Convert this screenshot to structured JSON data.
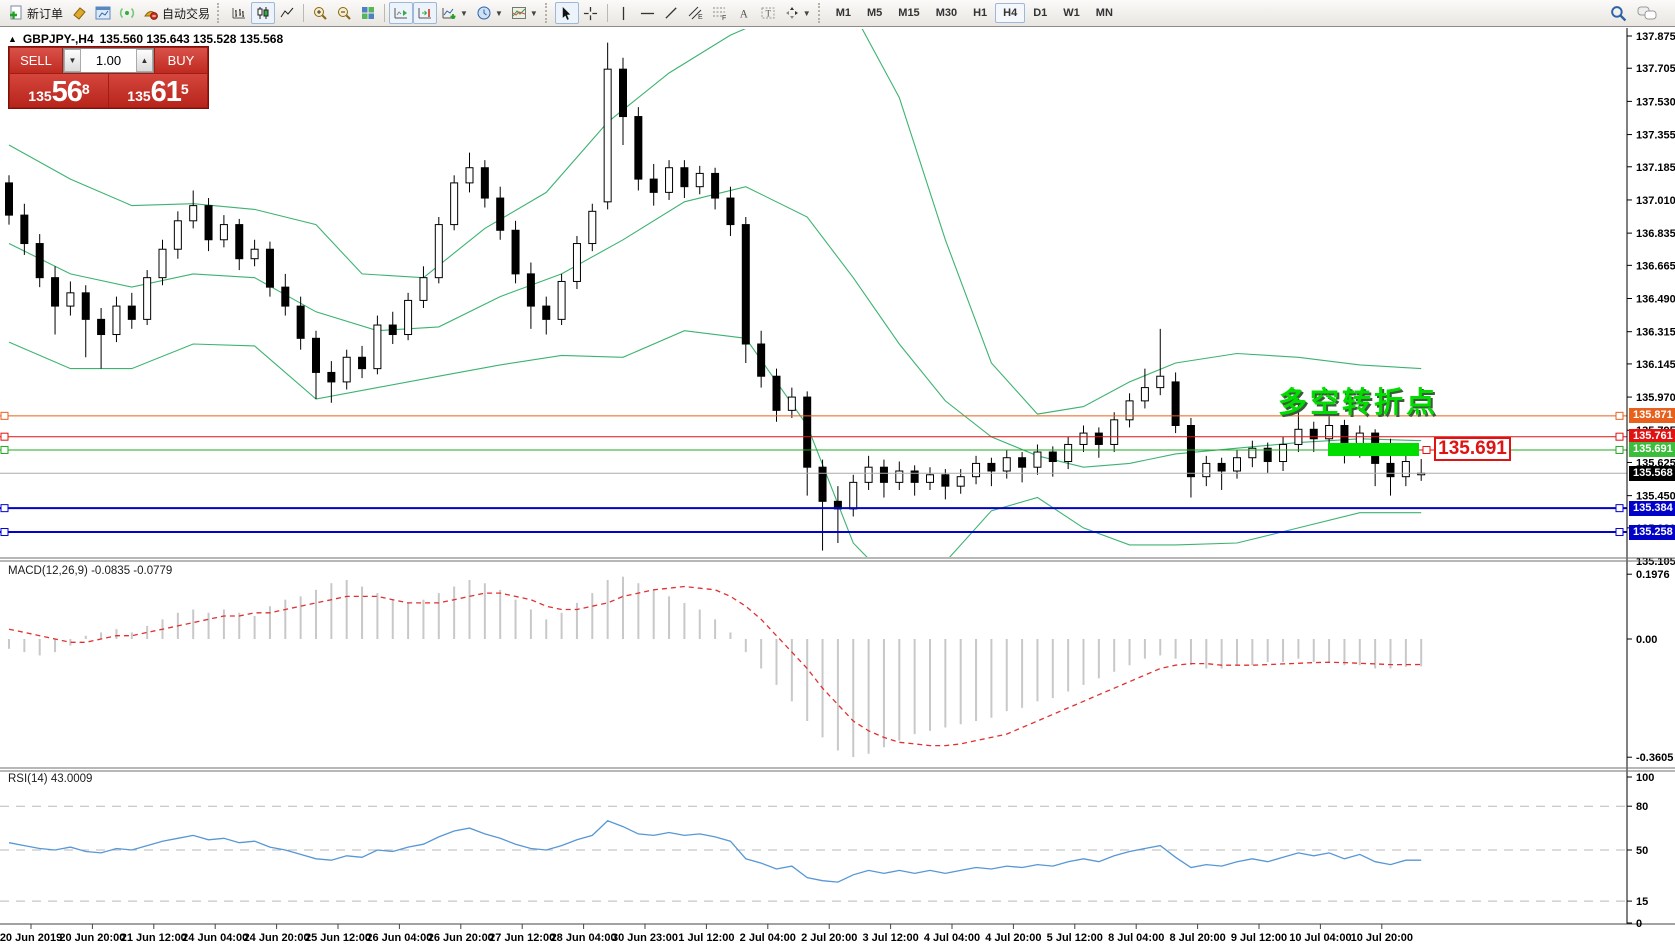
{
  "toolbar": {
    "new_order_label": "新订单",
    "auto_trading_label": "自动交易",
    "timeframes": [
      "M1",
      "M5",
      "M15",
      "M30",
      "H1",
      "H4",
      "D1",
      "W1",
      "MN"
    ],
    "active_timeframe": "H4",
    "annotation_tool_labels": {
      "channel": "E",
      "fibo": "F",
      "text": "A"
    }
  },
  "symbol_bar": {
    "symbol": "GBPJPY-,H4",
    "ohlc": "135.560 135.643 135.528 135.568"
  },
  "trade_panel": {
    "sell_label": "SELL",
    "buy_label": "BUY",
    "volume": "1.00",
    "sell_prefix": "135",
    "sell_big": "56",
    "sell_sup": "8",
    "buy_prefix": "135",
    "buy_big": "61",
    "buy_sup": "5"
  },
  "chart": {
    "annotation": "多空转折点",
    "price_tag": "135.691",
    "bands_color": "#3CB371",
    "price_ticks": [
      137.875,
      137.705,
      137.53,
      137.355,
      137.185,
      137.01,
      136.835,
      136.665,
      136.49,
      136.315,
      136.145,
      135.97,
      135.795,
      135.625,
      135.45,
      135.28,
      135.105
    ],
    "hlines": [
      {
        "price": 135.871,
        "color": "#E8611C",
        "badge": "#E8611C",
        "width": 1
      },
      {
        "price": 135.761,
        "color": "#E01212",
        "badge": "#E01212",
        "width": 1
      },
      {
        "price": 135.691,
        "color": "#1FA81F",
        "badge": "#3CBE3C",
        "width": 1
      },
      {
        "price": 135.384,
        "color": "#0202C8",
        "badge": "#0202C8",
        "width": 2
      },
      {
        "price": 135.258,
        "color": "#0202C8",
        "badge": "#0202C8",
        "width": 2
      }
    ],
    "current_price": {
      "value": 135.568,
      "badge": "#000000",
      "line": "#ABABAB"
    },
    "time_labels": [
      "20 Jun 2019",
      "20 Jun 20:00",
      "21 Jun 12:00",
      "24 Jun 04:00",
      "24 Jun 20:00",
      "25 Jun 12:00",
      "26 Jun 04:00",
      "26 Jun 20:00",
      "27 Jun 12:00",
      "28 Jun 04:00",
      "30 Jun 23:00",
      "1 Jul 12:00",
      "2 Jul 04:00",
      "2 Jul 20:00",
      "3 Jul 12:00",
      "4 Jul 04:00",
      "4 Jul 20:00",
      "5 Jul 12:00",
      "8 Jul 04:00",
      "8 Jul 20:00",
      "9 Jul 12:00",
      "10 Jul 04:00",
      "10 Jul 20:00"
    ],
    "candles": [
      [
        137.1,
        137.14,
        136.88,
        136.93
      ],
      [
        136.93,
        136.99,
        136.72,
        136.78
      ],
      [
        136.78,
        136.83,
        136.55,
        136.6
      ],
      [
        136.6,
        136.66,
        136.3,
        136.45
      ],
      [
        136.45,
        136.58,
        136.4,
        136.52
      ],
      [
        136.52,
        136.56,
        136.18,
        136.38
      ],
      [
        136.38,
        136.44,
        136.12,
        136.3
      ],
      [
        136.3,
        136.5,
        136.26,
        136.45
      ],
      [
        136.45,
        136.52,
        136.33,
        136.38
      ],
      [
        136.38,
        136.64,
        136.35,
        136.6
      ],
      [
        136.6,
        136.8,
        136.56,
        136.75
      ],
      [
        136.75,
        136.95,
        136.7,
        136.9
      ],
      [
        136.9,
        137.06,
        136.86,
        136.98
      ],
      [
        136.98,
        137.02,
        136.74,
        136.8
      ],
      [
        136.8,
        136.93,
        136.76,
        136.88
      ],
      [
        136.88,
        136.91,
        136.64,
        136.7
      ],
      [
        136.7,
        136.8,
        136.66,
        136.75
      ],
      [
        136.75,
        136.79,
        136.5,
        136.55
      ],
      [
        136.55,
        136.62,
        136.4,
        136.45
      ],
      [
        136.45,
        136.5,
        136.22,
        136.28
      ],
      [
        136.28,
        136.32,
        135.96,
        136.1
      ],
      [
        136.1,
        136.16,
        135.94,
        136.05
      ],
      [
        136.05,
        136.22,
        136.01,
        136.18
      ],
      [
        136.18,
        136.24,
        136.07,
        136.12
      ],
      [
        136.12,
        136.4,
        136.09,
        136.35
      ],
      [
        136.35,
        136.42,
        136.25,
        136.3
      ],
      [
        136.3,
        136.52,
        136.27,
        136.48
      ],
      [
        136.48,
        136.66,
        136.44,
        136.6
      ],
      [
        136.6,
        136.92,
        136.57,
        136.88
      ],
      [
        136.88,
        137.14,
        136.85,
        137.1
      ],
      [
        137.1,
        137.26,
        137.05,
        137.18
      ],
      [
        137.18,
        137.22,
        136.97,
        137.02
      ],
      [
        137.02,
        137.08,
        136.8,
        136.85
      ],
      [
        136.85,
        136.9,
        136.57,
        136.62
      ],
      [
        136.62,
        136.68,
        136.33,
        136.45
      ],
      [
        136.45,
        136.5,
        136.3,
        136.38
      ],
      [
        136.38,
        136.62,
        136.35,
        136.58
      ],
      [
        136.58,
        136.82,
        136.54,
        136.78
      ],
      [
        136.78,
        136.99,
        136.74,
        136.95
      ],
      [
        137.0,
        137.84,
        136.96,
        137.7
      ],
      [
        137.7,
        137.76,
        137.3,
        137.45
      ],
      [
        137.45,
        137.5,
        137.06,
        137.12
      ],
      [
        137.12,
        137.2,
        136.98,
        137.05
      ],
      [
        137.05,
        137.22,
        137.01,
        137.18
      ],
      [
        137.18,
        137.22,
        137.02,
        137.08
      ],
      [
        137.08,
        137.19,
        137.04,
        137.15
      ],
      [
        137.15,
        137.18,
        136.96,
        137.02
      ],
      [
        137.02,
        137.08,
        136.82,
        136.88
      ],
      [
        136.88,
        136.92,
        136.15,
        136.25
      ],
      [
        136.25,
        136.32,
        136.02,
        136.08
      ],
      [
        136.08,
        136.12,
        135.84,
        135.9
      ],
      [
        135.9,
        136.02,
        135.86,
        135.97
      ],
      [
        135.97,
        136.0,
        135.45,
        135.6
      ],
      [
        135.6,
        135.64,
        135.16,
        135.42
      ],
      [
        135.42,
        135.5,
        135.2,
        135.38
      ],
      [
        135.38,
        135.56,
        135.34,
        135.52
      ],
      [
        135.52,
        135.66,
        135.48,
        135.6
      ],
      [
        135.6,
        135.64,
        135.44,
        135.52
      ],
      [
        135.52,
        135.63,
        135.48,
        135.58
      ],
      [
        135.58,
        135.61,
        135.45,
        135.52
      ],
      [
        135.52,
        135.6,
        135.48,
        135.56
      ],
      [
        135.56,
        135.59,
        135.43,
        135.5
      ],
      [
        135.5,
        135.59,
        135.46,
        135.55
      ],
      [
        135.55,
        135.66,
        135.51,
        135.62
      ],
      [
        135.62,
        135.65,
        135.5,
        135.58
      ],
      [
        135.58,
        135.69,
        135.54,
        135.65
      ],
      [
        135.65,
        135.68,
        135.52,
        135.6
      ],
      [
        135.6,
        135.72,
        135.56,
        135.68
      ],
      [
        135.68,
        135.71,
        135.55,
        135.63
      ],
      [
        135.63,
        135.76,
        135.59,
        135.72
      ],
      [
        135.72,
        135.82,
        135.68,
        135.78
      ],
      [
        135.78,
        135.81,
        135.65,
        135.72
      ],
      [
        135.72,
        135.89,
        135.68,
        135.85
      ],
      [
        135.85,
        135.99,
        135.81,
        135.95
      ],
      [
        135.95,
        136.12,
        135.91,
        136.02
      ],
      [
        136.02,
        136.33,
        135.98,
        136.08
      ],
      [
        136.05,
        136.1,
        135.78,
        135.82
      ],
      [
        135.82,
        135.86,
        135.44,
        135.55
      ],
      [
        135.55,
        135.66,
        135.5,
        135.62
      ],
      [
        135.62,
        135.65,
        135.48,
        135.58
      ],
      [
        135.58,
        135.69,
        135.54,
        135.65
      ],
      [
        135.65,
        135.74,
        135.6,
        135.7
      ],
      [
        135.7,
        135.73,
        135.57,
        135.63
      ],
      [
        135.63,
        135.76,
        135.58,
        135.72
      ],
      [
        135.72,
        136.0,
        135.68,
        135.8
      ],
      [
        135.8,
        135.84,
        135.68,
        135.75
      ],
      [
        135.75,
        135.88,
        135.7,
        135.82
      ],
      [
        135.82,
        135.85,
        135.62,
        135.7
      ],
      [
        135.7,
        135.82,
        135.65,
        135.78
      ],
      [
        135.78,
        135.8,
        135.5,
        135.62
      ],
      [
        135.62,
        135.75,
        135.45,
        135.55
      ],
      [
        135.55,
        135.7,
        135.5,
        135.63
      ],
      [
        135.56,
        135.643,
        135.528,
        135.568
      ]
    ],
    "bands": {
      "upper": [
        [
          0,
          137.3
        ],
        [
          4,
          137.12
        ],
        [
          8,
          136.98
        ],
        [
          12,
          136.99
        ],
        [
          16,
          136.96
        ],
        [
          20,
          136.88
        ],
        [
          23,
          136.62
        ],
        [
          27,
          136.6
        ],
        [
          31,
          136.86
        ],
        [
          35,
          137.05
        ],
        [
          39,
          137.42
        ],
        [
          43,
          137.68
        ],
        [
          47,
          137.88
        ],
        [
          51,
          138.02
        ],
        [
          55,
          138.0
        ],
        [
          58,
          137.55
        ],
        [
          61,
          136.8
        ],
        [
          64,
          136.15
        ],
        [
          67,
          135.88
        ],
        [
          70,
          135.92
        ],
        [
          73,
          136.05
        ],
        [
          76,
          136.15
        ],
        [
          80,
          136.2
        ],
        [
          84,
          136.18
        ],
        [
          88,
          136.14
        ],
        [
          92,
          136.12
        ]
      ],
      "middle": [
        [
          0,
          136.78
        ],
        [
          4,
          136.62
        ],
        [
          8,
          136.55
        ],
        [
          12,
          136.62
        ],
        [
          16,
          136.6
        ],
        [
          20,
          136.42
        ],
        [
          24,
          136.32
        ],
        [
          28,
          136.34
        ],
        [
          32,
          136.5
        ],
        [
          36,
          136.62
        ],
        [
          40,
          136.8
        ],
        [
          44,
          137.0
        ],
        [
          48,
          137.08
        ],
        [
          52,
          136.92
        ],
        [
          55,
          136.6
        ],
        [
          58,
          136.25
        ],
        [
          61,
          135.95
        ],
        [
          64,
          135.76
        ],
        [
          67,
          135.66
        ],
        [
          70,
          135.6
        ],
        [
          73,
          135.62
        ],
        [
          76,
          135.67
        ],
        [
          80,
          135.7
        ],
        [
          84,
          135.73
        ],
        [
          88,
          135.75
        ],
        [
          92,
          135.74
        ]
      ],
      "lower": [
        [
          0,
          136.26
        ],
        [
          4,
          136.12
        ],
        [
          8,
          136.12
        ],
        [
          12,
          136.25
        ],
        [
          16,
          136.24
        ],
        [
          20,
          135.96
        ],
        [
          24,
          136.02
        ],
        [
          28,
          136.08
        ],
        [
          32,
          136.14
        ],
        [
          36,
          136.19
        ],
        [
          40,
          136.18
        ],
        [
          44,
          136.32
        ],
        [
          48,
          136.28
        ],
        [
          52,
          135.82
        ],
        [
          55,
          135.2
        ],
        [
          58,
          134.95
        ],
        [
          61,
          135.1
        ],
        [
          64,
          135.37
        ],
        [
          67,
          135.44
        ],
        [
          70,
          135.28
        ],
        [
          73,
          135.19
        ],
        [
          76,
          135.19
        ],
        [
          80,
          135.2
        ],
        [
          84,
          135.28
        ],
        [
          88,
          135.36
        ],
        [
          92,
          135.36
        ]
      ]
    }
  },
  "macd": {
    "label": "MACD(12,26,9)",
    "values": "-0.0835 -0.0779",
    "axis_max": "0.1976",
    "axis_zero": "0.00",
    "axis_min": "-0.3605",
    "hist_color": "#C8C8C8",
    "signal_color": "#E03030",
    "hist": [
      -0.03,
      -0.04,
      -0.05,
      -0.04,
      -0.02,
      0.01,
      0.02,
      0.03,
      0.02,
      0.04,
      0.06,
      0.08,
      0.09,
      0.08,
      0.09,
      0.08,
      0.07,
      0.1,
      0.12,
      0.13,
      0.15,
      0.17,
      0.18,
      0.16,
      0.14,
      0.12,
      0.11,
      0.12,
      0.14,
      0.16,
      0.18,
      0.17,
      0.15,
      0.12,
      0.09,
      0.06,
      0.08,
      0.11,
      0.14,
      0.18,
      0.19,
      0.17,
      0.15,
      0.13,
      0.11,
      0.09,
      0.06,
      0.02,
      -0.04,
      -0.09,
      -0.14,
      -0.19,
      -0.25,
      -0.3,
      -0.34,
      -0.36,
      -0.35,
      -0.33,
      -0.31,
      -0.29,
      -0.28,
      -0.27,
      -0.26,
      -0.25,
      -0.24,
      -0.22,
      -0.21,
      -0.19,
      -0.18,
      -0.16,
      -0.14,
      -0.12,
      -0.1,
      -0.08,
      -0.06,
      -0.05,
      -0.06,
      -0.08,
      -0.09,
      -0.09,
      -0.08,
      -0.08,
      -0.07,
      -0.07,
      -0.06,
      -0.07,
      -0.07,
      -0.08,
      -0.08,
      -0.09,
      -0.09,
      -0.085,
      -0.0835
    ],
    "signal": [
      0.03,
      0.02,
      0.01,
      0.0,
      -0.01,
      -0.01,
      0.0,
      0.01,
      0.01,
      0.02,
      0.03,
      0.04,
      0.05,
      0.06,
      0.07,
      0.07,
      0.08,
      0.08,
      0.09,
      0.1,
      0.11,
      0.12,
      0.13,
      0.13,
      0.13,
      0.12,
      0.11,
      0.11,
      0.11,
      0.12,
      0.13,
      0.14,
      0.14,
      0.13,
      0.12,
      0.1,
      0.09,
      0.09,
      0.1,
      0.11,
      0.13,
      0.14,
      0.15,
      0.155,
      0.16,
      0.155,
      0.15,
      0.13,
      0.1,
      0.06,
      0.01,
      -0.04,
      -0.09,
      -0.15,
      -0.2,
      -0.25,
      -0.28,
      -0.3,
      -0.315,
      -0.32,
      -0.325,
      -0.325,
      -0.32,
      -0.31,
      -0.3,
      -0.29,
      -0.27,
      -0.25,
      -0.23,
      -0.21,
      -0.19,
      -0.17,
      -0.15,
      -0.13,
      -0.11,
      -0.09,
      -0.08,
      -0.075,
      -0.075,
      -0.08,
      -0.08,
      -0.08,
      -0.078,
      -0.076,
      -0.074,
      -0.072,
      -0.071,
      -0.072,
      -0.074,
      -0.076,
      -0.078,
      -0.078,
      -0.0779
    ]
  },
  "rsi": {
    "label": "RSI(14)",
    "value": "43.0009",
    "color": "#5797D6",
    "levels": [
      {
        "v": 100,
        "label": "100",
        "dashed": false
      },
      {
        "v": 80,
        "label": "80",
        "dashed": true
      },
      {
        "v": 50,
        "label": "50",
        "dashed": true
      },
      {
        "v": 15,
        "label": "15",
        "dashed": true
      },
      {
        "v": 0,
        "label": "0",
        "dashed": false
      }
    ],
    "series": [
      55,
      53,
      51,
      50,
      52,
      49,
      48,
      51,
      50,
      53,
      56,
      58,
      60,
      57,
      58,
      55,
      56,
      52,
      50,
      47,
      44,
      43,
      46,
      45,
      50,
      49,
      52,
      54,
      59,
      63,
      65,
      61,
      58,
      54,
      51,
      50,
      53,
      57,
      60,
      70,
      66,
      61,
      60,
      62,
      60,
      61,
      59,
      56,
      44,
      41,
      37,
      39,
      31,
      29,
      28,
      33,
      36,
      34,
      36,
      34,
      36,
      34,
      36,
      38,
      37,
      39,
      38,
      40,
      39,
      42,
      44,
      42,
      46,
      49,
      51,
      53,
      45,
      38,
      40,
      39,
      42,
      44,
      42,
      45,
      48,
      46,
      48,
      44,
      47,
      42,
      40,
      43,
      43
    ]
  }
}
